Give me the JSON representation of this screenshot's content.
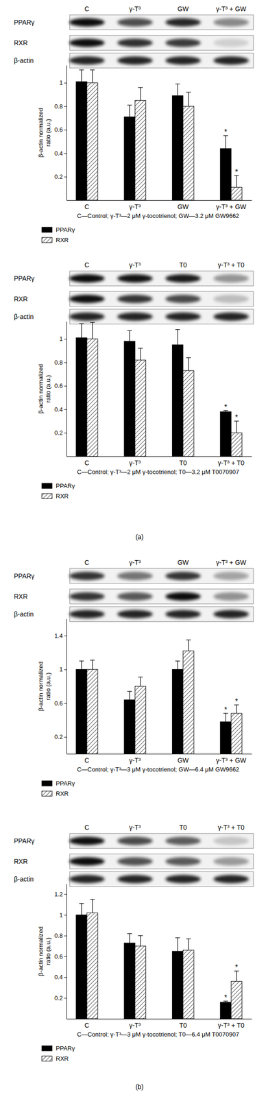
{
  "chart_data": [
    {
      "type": "bar",
      "categories": [
        "C",
        "γ-T³",
        "GW",
        "γ-T³ + GW"
      ],
      "blot_rows": [
        "PPARγ",
        "RXR",
        "β-actin"
      ],
      "y_label": [
        "β-actin normalized",
        "ratio (a.u.)"
      ],
      "caption": "C—Control; γ-T³—2 μM γ-tocotrienol; GW—3.2 μM GW9662",
      "ylim": [
        0,
        1.15
      ],
      "yticks": [
        0.2,
        0.4,
        0.6,
        0.8,
        1
      ],
      "legend": "below",
      "series": [
        {
          "name": "PPARγ",
          "color": "#000000",
          "line_style": "solid",
          "values": [
            1.01,
            0.71,
            0.89,
            0.44
          ],
          "errors": [
            0.1,
            0.1,
            0.1,
            0.11
          ],
          "annotations": [
            null,
            null,
            null,
            "*"
          ]
        },
        {
          "name": "RXR",
          "color": "#000000",
          "line_style": "hatched",
          "values": [
            1.0,
            0.85,
            0.8,
            0.11
          ],
          "errors": [
            0.11,
            0.11,
            0.12,
            0.1
          ],
          "annotations": [
            null,
            null,
            null,
            "*"
          ]
        }
      ]
    },
    {
      "type": "bar",
      "categories": [
        "C",
        "γ-T³",
        "T0",
        "γ-T³ + T0"
      ],
      "blot_rows": [
        "PPARγ",
        "RXR",
        "β-actin"
      ],
      "y_label": [
        "β-actin normalized",
        "ratio (a.u.)"
      ],
      "caption": "C—Control; γ-T³—2 μM γ-tocotrienol; T0—3.2 μM T0070907",
      "ylim": [
        0,
        1.15
      ],
      "yticks": [
        0.2,
        0.4,
        0.6,
        0.8,
        1
      ],
      "legend": "below",
      "series": [
        {
          "name": "PPARγ",
          "color": "#000000",
          "line_style": "solid",
          "values": [
            1.01,
            0.98,
            0.95,
            0.38
          ],
          "errors": [
            0.12,
            0.09,
            0.13,
            0.01
          ],
          "annotations": [
            null,
            null,
            null,
            "*"
          ]
        },
        {
          "name": "RXR",
          "color": "#000000",
          "line_style": "hatched",
          "values": [
            1.0,
            0.82,
            0.73,
            0.2
          ],
          "errors": [
            0.14,
            0.1,
            0.11,
            0.1
          ],
          "annotations": [
            null,
            null,
            null,
            "*"
          ]
        }
      ]
    },
    {
      "type": "bar",
      "categories": [
        "C",
        "γ-T³",
        "GW",
        "γ-T³ + GW"
      ],
      "blot_rows": [
        "PPARγ",
        "RXR",
        "β-actin"
      ],
      "y_label": [
        "β-actin normalized",
        "ratio (a.u.)"
      ],
      "caption": "C—Control; γ-T³—3 μM γ-tocotrienol; GW—6.4 μM GW9662",
      "ylim": [
        0,
        1.6
      ],
      "yticks": [
        0.2,
        0.6,
        1,
        1.4
      ],
      "legend": "below",
      "series": [
        {
          "name": "PPARγ",
          "color": "#000000",
          "line_style": "solid",
          "values": [
            1.0,
            0.64,
            1.0,
            0.38
          ],
          "errors": [
            0.1,
            0.1,
            0.1,
            0.1
          ],
          "annotations": [
            null,
            null,
            null,
            "*"
          ]
        },
        {
          "name": "RXR",
          "color": "#000000",
          "line_style": "hatched",
          "values": [
            1.0,
            0.8,
            1.22,
            0.48
          ],
          "errors": [
            0.11,
            0.11,
            0.13,
            0.1
          ],
          "annotations": [
            null,
            null,
            null,
            "*"
          ]
        }
      ]
    },
    {
      "type": "bar",
      "categories": [
        "C",
        "γ-T³",
        "T0",
        "γ-T³ + T0"
      ],
      "blot_rows": [
        "PPARγ",
        "RXR",
        "β-actin"
      ],
      "y_label": [
        "β-actin normalized",
        "ratio (a.u.)"
      ],
      "caption": "C—Control; γ-T³—3 μM γ-tocotrienol; T0—6.4 μM T0070907",
      "ylim": [
        0,
        1.3
      ],
      "yticks": [
        0.2,
        0.4,
        0.6,
        0.8,
        1,
        1.2
      ],
      "legend": "below",
      "series": [
        {
          "name": "PPARγ",
          "color": "#000000",
          "line_style": "solid",
          "values": [
            1.0,
            0.73,
            0.65,
            0.16
          ],
          "errors": [
            0.11,
            0.09,
            0.13,
            0.01
          ],
          "annotations": [
            null,
            null,
            null,
            "*"
          ]
        },
        {
          "name": "RXR",
          "color": "#000000",
          "line_style": "hatched",
          "values": [
            1.02,
            0.7,
            0.66,
            0.36
          ],
          "errors": [
            0.13,
            0.1,
            0.11,
            0.1
          ],
          "annotations": [
            null,
            null,
            null,
            "*"
          ]
        }
      ]
    }
  ],
  "panel_labels": [
    "(a)",
    "(b)"
  ]
}
